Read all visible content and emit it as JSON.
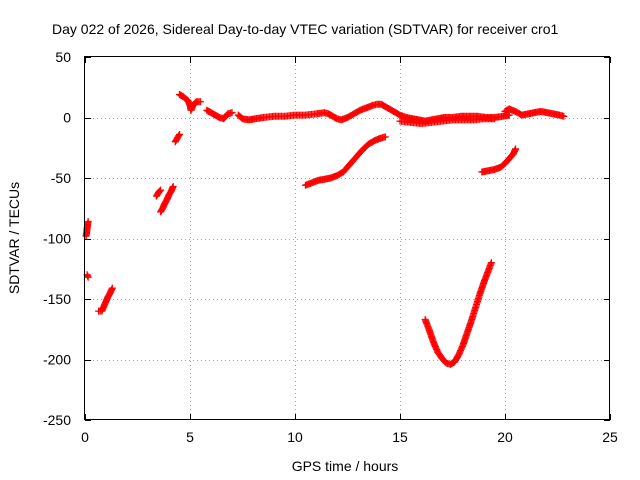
{
  "chart_data": {
    "type": "scatter",
    "title": "Day 022 of 2026, Sidereal Day-to-day VTEC variation (SDTVAR) for receiver cro1",
    "xlabel": "GPS time / hours",
    "ylabel": "SDTVAR / TECUs",
    "xlim": [
      0,
      25
    ],
    "ylim": [
      -250,
      50
    ],
    "xticks": [
      0,
      5,
      10,
      15,
      20,
      25
    ],
    "yticks": [
      -250,
      -200,
      -150,
      -100,
      -50,
      0,
      50
    ],
    "xtick_labels": [
      "0",
      "5",
      "10",
      "15",
      "20",
      "25"
    ],
    "ytick_labels": [
      "-250",
      "-200",
      "-150",
      "-100",
      "-50",
      "0",
      "50"
    ],
    "grid": true,
    "marker": "plus",
    "series_color": "#ff0000",
    "segments": [
      {
        "name": "arc-a1",
        "points": [
          [
            0.05,
            -98
          ],
          [
            0.08,
            -95
          ],
          [
            0.1,
            -92
          ],
          [
            0.12,
            -89
          ],
          [
            0.15,
            -86
          ]
        ]
      },
      {
        "name": "arc-a2",
        "points": [
          [
            0.1,
            -130
          ],
          [
            0.15,
            -132
          ]
        ]
      },
      {
        "name": "arc-b",
        "points": [
          [
            0.65,
            -160
          ],
          [
            0.8,
            -160
          ],
          [
            0.9,
            -156
          ],
          [
            1.0,
            -152
          ],
          [
            1.1,
            -148
          ],
          [
            1.2,
            -145
          ],
          [
            1.3,
            -141
          ]
        ]
      },
      {
        "name": "arc-c1",
        "points": [
          [
            3.4,
            -65
          ],
          [
            3.5,
            -62
          ],
          [
            3.6,
            -60
          ]
        ]
      },
      {
        "name": "arc-c2",
        "points": [
          [
            3.6,
            -78
          ],
          [
            3.7,
            -75
          ],
          [
            3.8,
            -71
          ],
          [
            3.9,
            -68
          ],
          [
            4.0,
            -64
          ],
          [
            4.1,
            -61
          ],
          [
            4.2,
            -57
          ]
        ]
      },
      {
        "name": "arc-d",
        "points": [
          [
            4.3,
            -20
          ],
          [
            4.4,
            -17
          ],
          [
            4.5,
            -14
          ]
        ]
      },
      {
        "name": "arc-e",
        "points": [
          [
            4.5,
            19
          ],
          [
            4.7,
            17
          ],
          [
            4.9,
            14
          ],
          [
            5.0,
            10
          ],
          [
            5.05,
            6
          ],
          [
            5.15,
            10
          ],
          [
            5.3,
            13
          ],
          [
            5.5,
            13
          ]
        ]
      },
      {
        "name": "arc-f",
        "points": [
          [
            5.8,
            6
          ],
          [
            6.0,
            4
          ],
          [
            6.2,
            2
          ],
          [
            6.4,
            0
          ],
          [
            6.6,
            -1
          ],
          [
            6.8,
            3
          ],
          [
            7.0,
            4
          ]
        ]
      },
      {
        "name": "arc-g",
        "points": [
          [
            7.3,
            2
          ],
          [
            7.5,
            -1
          ],
          [
            7.8,
            -2
          ],
          [
            8.1,
            -1
          ],
          [
            8.5,
            0
          ],
          [
            9.0,
            1
          ],
          [
            9.5,
            1
          ],
          [
            10.0,
            2
          ],
          [
            10.5,
            2
          ],
          [
            11.0,
            3
          ],
          [
            11.4,
            4
          ],
          [
            11.6,
            3
          ],
          [
            11.8,
            1
          ],
          [
            12.0,
            -1
          ],
          [
            12.2,
            -2
          ],
          [
            12.5,
            0
          ],
          [
            12.8,
            3
          ],
          [
            13.1,
            6
          ],
          [
            13.4,
            8
          ],
          [
            13.7,
            10
          ],
          [
            13.9,
            11
          ],
          [
            14.1,
            11
          ],
          [
            14.4,
            8
          ],
          [
            14.7,
            5
          ],
          [
            15.0,
            2
          ],
          [
            15.3,
            0
          ],
          [
            15.6,
            -1
          ],
          [
            15.9,
            -2
          ],
          [
            16.2,
            -3
          ],
          [
            16.5,
            -2
          ],
          [
            16.8,
            -1
          ],
          [
            17.1,
            0
          ],
          [
            17.5,
            0
          ],
          [
            17.9,
            1
          ],
          [
            18.3,
            1
          ],
          [
            18.7,
            1
          ],
          [
            19.1,
            0
          ],
          [
            19.5,
            0
          ],
          [
            19.9,
            1
          ],
          [
            20.2,
            2
          ]
        ]
      },
      {
        "name": "arc-g2",
        "points": [
          [
            15.0,
            -3
          ],
          [
            15.5,
            -4
          ],
          [
            16.0,
            -5
          ],
          [
            16.5,
            -4
          ],
          [
            17.0,
            -3
          ],
          [
            17.5,
            -2
          ],
          [
            18.0,
            -2
          ],
          [
            18.5,
            -2
          ],
          [
            19.0,
            -1
          ],
          [
            19.5,
            -1
          ]
        ]
      },
      {
        "name": "arc-h",
        "points": [
          [
            20.0,
            5
          ],
          [
            20.2,
            7
          ],
          [
            20.5,
            5
          ],
          [
            20.8,
            2
          ],
          [
            21.1,
            3
          ],
          [
            21.4,
            4
          ],
          [
            21.7,
            5
          ],
          [
            22.0,
            4
          ],
          [
            22.3,
            3
          ],
          [
            22.6,
            2
          ],
          [
            22.8,
            1
          ]
        ]
      },
      {
        "name": "arc-i",
        "points": [
          [
            10.5,
            -56
          ],
          [
            10.8,
            -54
          ],
          [
            11.1,
            -52
          ],
          [
            11.4,
            -51
          ],
          [
            11.7,
            -50
          ],
          [
            12.0,
            -48
          ],
          [
            12.3,
            -45
          ],
          [
            12.6,
            -39
          ],
          [
            12.9,
            -33
          ],
          [
            13.2,
            -27
          ],
          [
            13.5,
            -22
          ],
          [
            13.8,
            -19
          ],
          [
            14.1,
            -17
          ],
          [
            14.3,
            -16
          ]
        ]
      },
      {
        "name": "arc-j",
        "points": [
          [
            18.9,
            -45
          ],
          [
            19.2,
            -44
          ],
          [
            19.5,
            -43
          ],
          [
            19.8,
            -41
          ],
          [
            20.0,
            -38
          ],
          [
            20.2,
            -34
          ],
          [
            20.4,
            -30
          ],
          [
            20.5,
            -26
          ]
        ]
      },
      {
        "name": "arc-k",
        "points": [
          [
            16.2,
            -167
          ],
          [
            16.4,
            -176
          ],
          [
            16.6,
            -186
          ],
          [
            16.8,
            -194
          ],
          [
            17.0,
            -199
          ],
          [
            17.2,
            -203
          ],
          [
            17.4,
            -204
          ],
          [
            17.6,
            -202
          ],
          [
            17.8,
            -196
          ],
          [
            18.0,
            -188
          ],
          [
            18.2,
            -178
          ],
          [
            18.4,
            -168
          ],
          [
            18.6,
            -157
          ],
          [
            18.8,
            -146
          ],
          [
            19.0,
            -136
          ],
          [
            19.2,
            -127
          ],
          [
            19.35,
            -120
          ]
        ]
      }
    ]
  }
}
